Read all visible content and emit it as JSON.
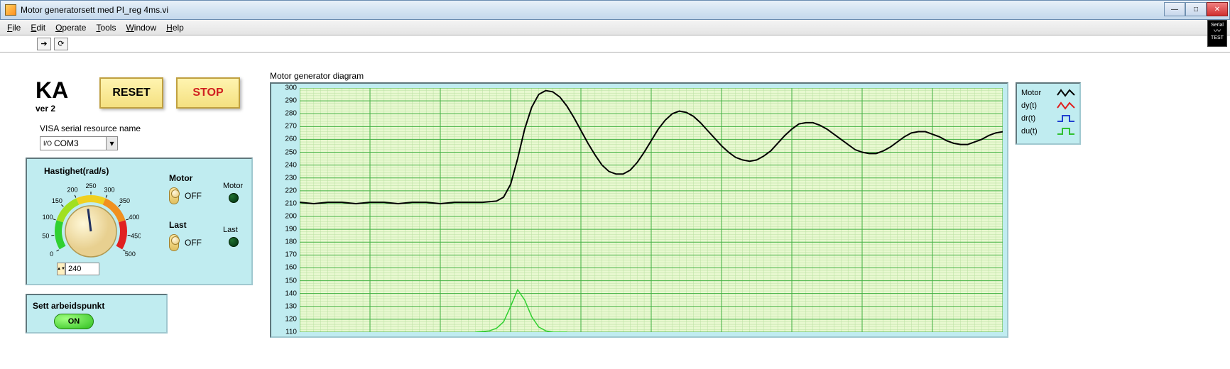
{
  "window": {
    "title": "Motor generatorsett med PI_reg 4ms.vi"
  },
  "menu": {
    "file": "File",
    "edit": "Edit",
    "operate": "Operate",
    "tools": "Tools",
    "window": "Window",
    "help": "Help"
  },
  "serial_icon": {
    "line1": "Serial",
    "line2": "TEST"
  },
  "brand": {
    "name": "KA",
    "ver": "ver 2"
  },
  "buttons": {
    "reset": "RESET",
    "stop": "STOP"
  },
  "visa": {
    "label": "VISA serial resource name",
    "value": "COM3"
  },
  "speed_panel": {
    "label": "Hastighet(rad/s)",
    "value": "240",
    "ticks": [
      "0",
      "50",
      "100",
      "150",
      "200",
      "250",
      "300",
      "350",
      "400",
      "450",
      "500"
    ],
    "dial_min": 0,
    "dial_max": 500,
    "dial_value": 235,
    "arc_colors": [
      "#30d030",
      "#a0e020",
      "#f0d020",
      "#f09020",
      "#e02020"
    ],
    "motor_lbl": "Motor",
    "last_lbl": "Last",
    "off": "OFF",
    "led_motor": "Motor",
    "led_last": "Last"
  },
  "set_panel": {
    "title": "Sett arbeidspunkt",
    "on": "ON"
  },
  "chart": {
    "title": "Motor generator diagram",
    "type": "line",
    "background": "#e8f8d0",
    "grid_minor": "#b8e0a0",
    "grid_major": "#40b040",
    "y_min": 110,
    "y_max": 300,
    "y_ticks": [
      110,
      120,
      130,
      140,
      150,
      160,
      170,
      180,
      190,
      200,
      210,
      220,
      230,
      240,
      250,
      260,
      270,
      280,
      290,
      300
    ],
    "x_min": 0,
    "x_max": 100,
    "series": [
      {
        "name": "Motor",
        "color": "#000000",
        "width": 2,
        "data": [
          [
            0,
            211
          ],
          [
            2,
            210
          ],
          [
            4,
            211
          ],
          [
            6,
            211
          ],
          [
            8,
            210
          ],
          [
            10,
            211
          ],
          [
            12,
            211
          ],
          [
            14,
            210
          ],
          [
            16,
            211
          ],
          [
            18,
            211
          ],
          [
            20,
            210
          ],
          [
            22,
            211
          ],
          [
            24,
            211
          ],
          [
            26,
            211
          ],
          [
            28,
            212
          ],
          [
            29,
            215
          ],
          [
            30,
            225
          ],
          [
            31,
            245
          ],
          [
            32,
            268
          ],
          [
            33,
            285
          ],
          [
            34,
            295
          ],
          [
            35,
            298
          ],
          [
            36,
            297
          ],
          [
            37,
            293
          ],
          [
            38,
            286
          ],
          [
            39,
            277
          ],
          [
            40,
            267
          ],
          [
            41,
            257
          ],
          [
            42,
            248
          ],
          [
            43,
            240
          ],
          [
            44,
            235
          ],
          [
            45,
            233
          ],
          [
            46,
            233
          ],
          [
            47,
            236
          ],
          [
            48,
            242
          ],
          [
            49,
            250
          ],
          [
            50,
            259
          ],
          [
            51,
            268
          ],
          [
            52,
            275
          ],
          [
            53,
            280
          ],
          [
            54,
            282
          ],
          [
            55,
            281
          ],
          [
            56,
            278
          ],
          [
            57,
            273
          ],
          [
            58,
            267
          ],
          [
            59,
            261
          ],
          [
            60,
            255
          ],
          [
            61,
            250
          ],
          [
            62,
            246
          ],
          [
            63,
            244
          ],
          [
            64,
            243
          ],
          [
            65,
            244
          ],
          [
            66,
            247
          ],
          [
            67,
            251
          ],
          [
            68,
            257
          ],
          [
            69,
            263
          ],
          [
            70,
            268
          ],
          [
            71,
            272
          ],
          [
            72,
            273
          ],
          [
            73,
            273
          ],
          [
            74,
            271
          ],
          [
            75,
            268
          ],
          [
            76,
            264
          ],
          [
            77,
            260
          ],
          [
            78,
            256
          ],
          [
            79,
            252
          ],
          [
            80,
            250
          ],
          [
            81,
            249
          ],
          [
            82,
            249
          ],
          [
            83,
            251
          ],
          [
            84,
            254
          ],
          [
            85,
            258
          ],
          [
            86,
            262
          ],
          [
            87,
            265
          ],
          [
            88,
            266
          ],
          [
            89,
            266
          ],
          [
            90,
            264
          ],
          [
            91,
            262
          ],
          [
            92,
            259
          ],
          [
            93,
            257
          ],
          [
            94,
            256
          ],
          [
            95,
            256
          ],
          [
            96,
            258
          ],
          [
            97,
            260
          ],
          [
            98,
            263
          ],
          [
            99,
            265
          ],
          [
            100,
            266
          ]
        ]
      },
      {
        "name": "du(t)",
        "color": "#30d030",
        "width": 1.5,
        "data": [
          [
            25,
            110
          ],
          [
            27,
            111
          ],
          [
            28,
            113
          ],
          [
            29,
            118
          ],
          [
            30,
            130
          ],
          [
            31,
            143
          ],
          [
            32,
            135
          ],
          [
            33,
            122
          ],
          [
            34,
            114
          ],
          [
            35,
            111
          ],
          [
            36,
            110
          ],
          [
            38,
            110
          ]
        ]
      }
    ]
  },
  "legend": {
    "items": [
      {
        "label": "Motor",
        "type": "wave",
        "color": "#000000"
      },
      {
        "label": "dy(t)",
        "type": "wave",
        "color": "#e02020"
      },
      {
        "label": "dr(t)",
        "type": "step",
        "color": "#2040d0"
      },
      {
        "label": "du(t)",
        "type": "step",
        "color": "#30c030"
      }
    ]
  }
}
